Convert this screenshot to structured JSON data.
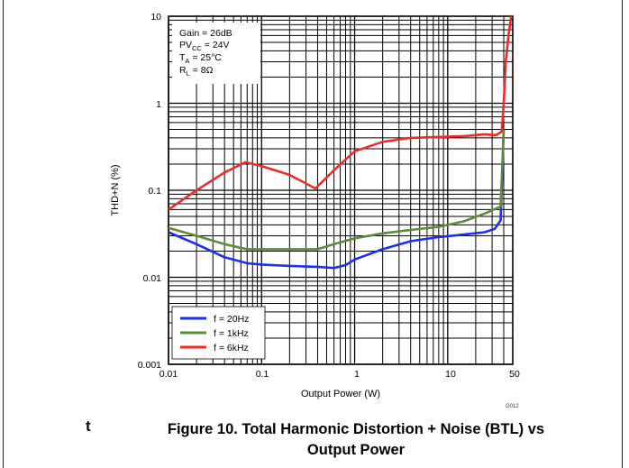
{
  "caption": {
    "line1": "Figure 10. Total Harmonic Distortion + Noise (BTL) vs",
    "line2": "Output Power",
    "fig_id": "G012",
    "stray_text": "t"
  },
  "colors": {
    "f20": "#1f2ee8",
    "f1k": "#5e8a3c",
    "f6k": "#ee2a2a"
  },
  "chart_data": {
    "type": "line",
    "xscale": "log",
    "yscale": "log",
    "xlim": [
      0.01,
      50
    ],
    "ylim": [
      0.001,
      10
    ],
    "xlabel": "Output Power (W)",
    "ylabel": "THD+N (%)",
    "grid": true,
    "x_ticks": [
      "0.01",
      "0.1",
      "1",
      "10",
      "50"
    ],
    "y_ticks": [
      "10",
      "1",
      "0.1",
      "0.01",
      "0.001"
    ],
    "annotations": {
      "gain": "Gain = 26dB",
      "pvcc_main": "PV",
      "pvcc_sub": "CC",
      "pvcc_rest": " = 24V",
      "ta_main": "T",
      "ta_sub": "A",
      "ta_rest": " = 25°C",
      "rl_main": "R",
      "rl_sub": "L",
      "rl_rest": " = 8Ω"
    },
    "legend_position": "bottom-left",
    "series": [
      {
        "name": "f = 20Hz",
        "color": "#1f2ee8",
        "x": [
          0.01,
          0.02,
          0.04,
          0.07,
          0.1,
          0.2,
          0.4,
          0.6,
          0.8,
          1,
          2,
          4,
          8,
          15,
          25,
          32,
          37,
          40
        ],
        "y": [
          0.033,
          0.024,
          0.017,
          0.0145,
          0.014,
          0.0135,
          0.0132,
          0.0128,
          0.0138,
          0.016,
          0.021,
          0.026,
          0.029,
          0.031,
          0.033,
          0.036,
          0.045,
          0.5
        ]
      },
      {
        "name": "f = 1kHz",
        "color": "#5e8a3c",
        "x": [
          0.01,
          0.02,
          0.04,
          0.07,
          0.1,
          0.2,
          0.4,
          0.6,
          1,
          2,
          4,
          8,
          15,
          25,
          37,
          40
        ],
        "y": [
          0.037,
          0.03,
          0.024,
          0.021,
          0.021,
          0.021,
          0.021,
          0.024,
          0.028,
          0.032,
          0.035,
          0.038,
          0.044,
          0.054,
          0.065,
          0.5
        ]
      },
      {
        "name": "f = 6kHz",
        "color": "#ee2a2a",
        "x": [
          0.01,
          0.02,
          0.04,
          0.067,
          0.1,
          0.2,
          0.38,
          0.6,
          1,
          2,
          4,
          8,
          15,
          25,
          33,
          38,
          40,
          42,
          45,
          48
        ],
        "y": [
          0.06,
          0.1,
          0.16,
          0.21,
          0.19,
          0.15,
          0.105,
          0.17,
          0.28,
          0.36,
          0.4,
          0.41,
          0.42,
          0.44,
          0.43,
          0.47,
          1.0,
          3.0,
          6.0,
          10
        ]
      }
    ]
  }
}
